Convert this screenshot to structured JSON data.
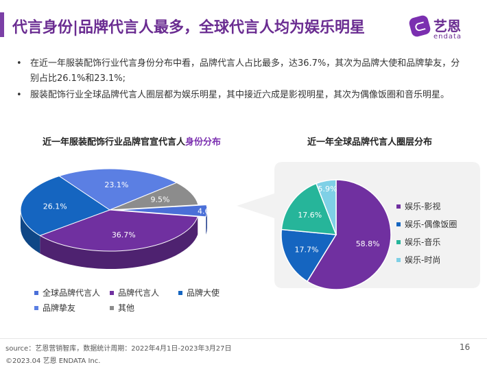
{
  "header": {
    "title": "代言身份|品牌代言人最多，全球代言人均为娱乐明星",
    "logo_cn": "艺恩",
    "logo_en": "endata"
  },
  "bullets": [
    "在近一年服装配饰行业代言身份分布中看，品牌代言人占比最多，达36.7%，其次为品牌大使和品牌挚友，分别占比26.1%和23.1%;",
    "服装配饰行业全球品牌代言人圈层都为娱乐明星，其中接近六成是影视明星，其次为偶像饭圈和音乐明星。"
  ],
  "bullet_symbol": "•",
  "chart_data": [
    {
      "type": "pie",
      "title_prefix": "近一年服装配饰行业品牌官宣代言人",
      "title_highlight": "身份分布",
      "series": [
        {
          "name": "全球品牌代言人",
          "value": 4.6,
          "label": "4.6%",
          "color": "#4a6fd8"
        },
        {
          "name": "品牌代言人",
          "value": 36.7,
          "label": "36.7%",
          "color": "#7030a0"
        },
        {
          "name": "品牌大使",
          "value": 26.1,
          "label": "26.1%",
          "color": "#1565c0"
        },
        {
          "name": "品牌挚友",
          "value": 23.1,
          "label": "23.1%",
          "color": "#5b7fe3"
        },
        {
          "name": "其他",
          "value": 9.5,
          "label": "9.5%",
          "color": "#8c8c8c"
        }
      ],
      "legend": "bottom"
    },
    {
      "type": "pie",
      "title": "近一年全球品牌代言人圈层分布",
      "series": [
        {
          "name": "娱乐-影视",
          "value": 58.8,
          "label": "58.8%",
          "color": "#7030a0"
        },
        {
          "name": "娱乐-偶像饭圈",
          "value": 17.7,
          "label": "17.7%",
          "color": "#1565c0"
        },
        {
          "name": "娱乐-音乐",
          "value": 17.6,
          "label": "17.6%",
          "color": "#26b59a"
        },
        {
          "name": "娱乐-时尚",
          "value": 5.9,
          "label": "5.9%",
          "color": "#7fd0e6"
        }
      ],
      "legend": "right"
    }
  ],
  "footer": {
    "source": "source：艺恩营销智库，数据统计周期：2022年4月1日-2023年3月27日",
    "copyright": "©2023.04 艺恩 ENDATA Inc.",
    "page_number": "16"
  }
}
